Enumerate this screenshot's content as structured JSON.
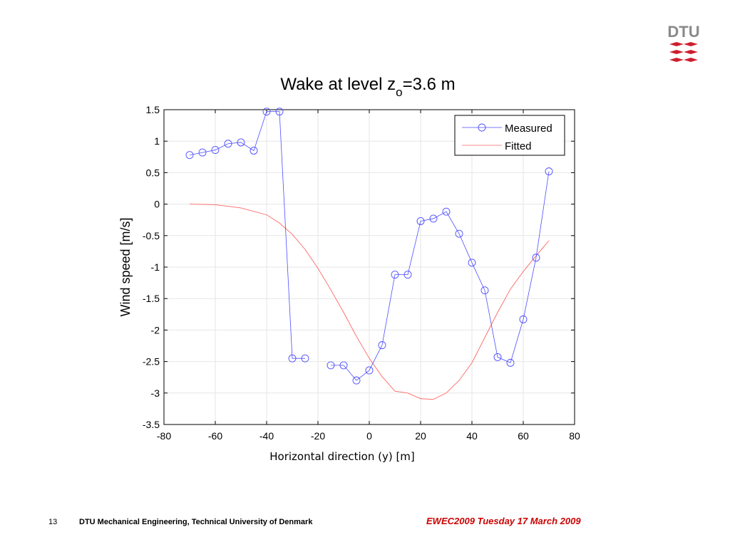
{
  "logo": {
    "text": "DTU",
    "color": "#8a8a8a",
    "mark_color": "#cc1f2f"
  },
  "footer": {
    "page_number": "13",
    "organization": "DTU Mechanical Engineering, Technical University of Denmark",
    "event": "EWEC2009 Tuesday 17 March 2009"
  },
  "chart_data": {
    "type": "line",
    "title_parts": {
      "main": "Wake at level z",
      "sub": "o",
      "tail": "=3.6 m"
    },
    "xlabel": "Horizontal direction (y) [m]",
    "ylabel": "Wind speed [m/s]",
    "xlim": [
      -80,
      80
    ],
    "ylim": [
      -3.5,
      1.5
    ],
    "xticks": [
      -80,
      -60,
      -40,
      -20,
      0,
      20,
      40,
      60,
      80
    ],
    "yticks": [
      1.5,
      1,
      0.5,
      0,
      -0.5,
      -1,
      -1.5,
      -2,
      -2.5,
      -3,
      -3.5
    ],
    "grid": true,
    "legend_position": "top-right",
    "series": [
      {
        "name": "Measured",
        "color": "#4d4dff",
        "marker": "circle",
        "segments": [
          [
            [
              -70,
              0.78
            ],
            [
              -65,
              0.82
            ],
            [
              -60,
              0.86
            ],
            [
              -55,
              0.96
            ],
            [
              -50,
              0.98
            ],
            [
              -45,
              0.85
            ],
            [
              -40,
              1.47
            ],
            [
              -35,
              1.47
            ],
            [
              -30,
              -2.45
            ],
            [
              -25,
              -2.45
            ]
          ],
          [
            [
              -15,
              -2.56
            ],
            [
              -10,
              -2.56
            ],
            [
              -5,
              -2.8
            ],
            [
              0,
              -2.64
            ],
            [
              5,
              -2.24
            ],
            [
              10,
              -1.12
            ],
            [
              15,
              -1.12
            ],
            [
              20,
              -0.27
            ],
            [
              25,
              -0.23
            ],
            [
              30,
              -0.12
            ],
            [
              35,
              -0.47
            ],
            [
              40,
              -0.93
            ],
            [
              45,
              -1.37
            ],
            [
              50,
              -2.43
            ],
            [
              55,
              -2.52
            ],
            [
              60,
              -1.83
            ],
            [
              65,
              -0.85
            ],
            [
              70,
              0.52
            ]
          ]
        ]
      },
      {
        "name": "Fitted",
        "color": "#ff6666",
        "marker": "none",
        "points": [
          [
            -70,
            0.0
          ],
          [
            -60,
            -0.01
          ],
          [
            -50,
            -0.06
          ],
          [
            -40,
            -0.17
          ],
          [
            -35,
            -0.3
          ],
          [
            -30,
            -0.48
          ],
          [
            -25,
            -0.72
          ],
          [
            -20,
            -1.02
          ],
          [
            -15,
            -1.36
          ],
          [
            -10,
            -1.72
          ],
          [
            -5,
            -2.1
          ],
          [
            0,
            -2.45
          ],
          [
            5,
            -2.74
          ],
          [
            10,
            -2.97
          ],
          [
            15,
            -3.0
          ],
          [
            20,
            -3.09
          ],
          [
            25,
            -3.1
          ],
          [
            30,
            -3.0
          ],
          [
            35,
            -2.8
          ],
          [
            40,
            -2.52
          ],
          [
            45,
            -2.12
          ],
          [
            50,
            -1.72
          ],
          [
            55,
            -1.35
          ],
          [
            60,
            -1.07
          ],
          [
            65,
            -0.82
          ],
          [
            70,
            -0.58
          ]
        ]
      }
    ]
  }
}
